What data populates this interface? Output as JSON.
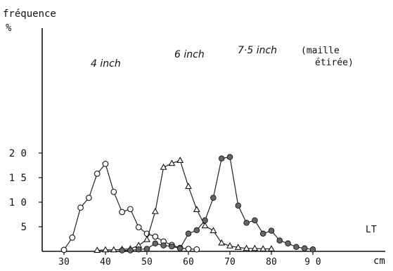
{
  "chart_data": {
    "type": "line",
    "ylabel_line1": "fréquence",
    "ylabel_line2": "%",
    "xunit": "cm",
    "xlabel": "LT",
    "xlim": [
      25,
      92
    ],
    "ylim": [
      0,
      22
    ],
    "xticks": [
      30,
      40,
      50,
      60,
      70,
      80,
      90
    ],
    "yticks": [
      5,
      10,
      15,
      20
    ],
    "ytick_labels": [
      "5",
      "1 0",
      "1 5",
      "2 0"
    ],
    "xtick_labels": [
      "30",
      "40",
      "50",
      "60",
      "70",
      "80",
      "9 0"
    ],
    "series": [
      {
        "name": "4 inch",
        "marker": "circle-open",
        "x": [
          30,
          32,
          34,
          36,
          38,
          40,
          42,
          44,
          46,
          48,
          50,
          52,
          54,
          56,
          58,
          60,
          62
        ],
        "y": [
          0.3,
          2.8,
          8.9,
          10.9,
          15.8,
          17.8,
          12.1,
          8.0,
          8.6,
          4.9,
          3.6,
          3.0,
          2.0,
          1.3,
          0.7,
          0.5,
          0.4
        ]
      },
      {
        "name": "6 inch",
        "marker": "triangle-open",
        "x": [
          38,
          40,
          42,
          44,
          46,
          48,
          50,
          52,
          54,
          56,
          58,
          60,
          62,
          64,
          66,
          68,
          70,
          72,
          74,
          76,
          78,
          80
        ],
        "y": [
          0.2,
          0.3,
          0.3,
          0.4,
          0.5,
          1.2,
          2.4,
          8.1,
          17.1,
          17.9,
          18.5,
          13.2,
          8.5,
          5.2,
          4.2,
          1.7,
          1.1,
          0.8,
          0.6,
          0.6,
          0.5,
          0.5
        ]
      },
      {
        "name": "7·5 inch",
        "name_note_line1": "(maille",
        "name_note_line2": "étirée)",
        "marker": "circle-filled",
        "x": [
          44,
          46,
          48,
          50,
          52,
          54,
          56,
          58,
          60,
          62,
          64,
          66,
          68,
          70,
          72,
          74,
          76,
          78,
          80,
          82,
          84,
          86,
          88,
          90
        ],
        "y": [
          0.2,
          0.2,
          0.4,
          0.5,
          1.6,
          1.2,
          1.0,
          0.6,
          3.6,
          4.3,
          6.3,
          10.9,
          18.9,
          19.2,
          9.3,
          5.8,
          6.3,
          3.6,
          4.2,
          2.2,
          1.6,
          0.9,
          0.6,
          0.4
        ]
      }
    ]
  }
}
